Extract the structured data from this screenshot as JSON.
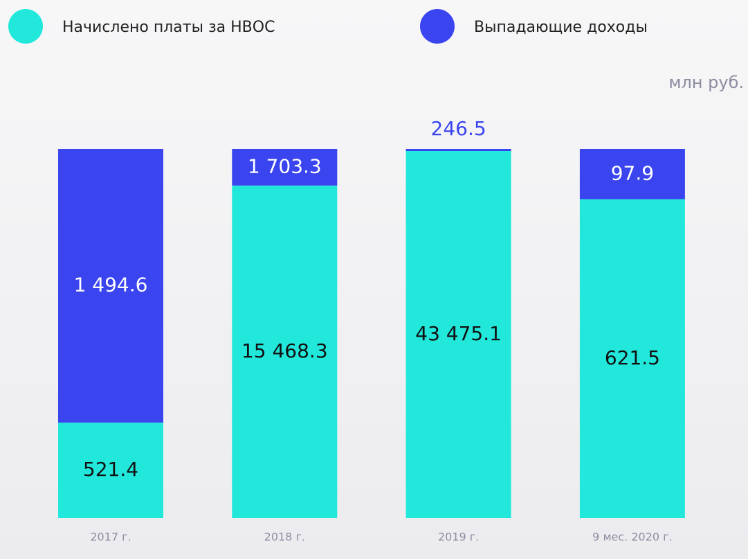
{
  "chart_data": {
    "type": "stacked_bar_percent",
    "unit": "млн руб.",
    "categories": [
      "2017 г.",
      "2018 г.",
      "2019 г.",
      "9 мес. 2020 г."
    ],
    "series": [
      {
        "name": "Начислено платы за НВОС",
        "color": "#22e8dc",
        "label_color": "#111111",
        "values": [
          521.4,
          15468.3,
          43475.1,
          621.5
        ],
        "value_labels": [
          "521.4",
          "15 468.3",
          "43 475.1",
          "621.5"
        ]
      },
      {
        "name": "Выпадающие доходы",
        "color": "#3a45f0",
        "label_color": "#ffffff",
        "values": [
          1494.6,
          1703.3,
          246.5,
          97.9
        ],
        "value_labels": [
          "1 494.6",
          "1 703.3",
          "246.5",
          "97.9"
        ]
      }
    ],
    "legend": "top"
  }
}
